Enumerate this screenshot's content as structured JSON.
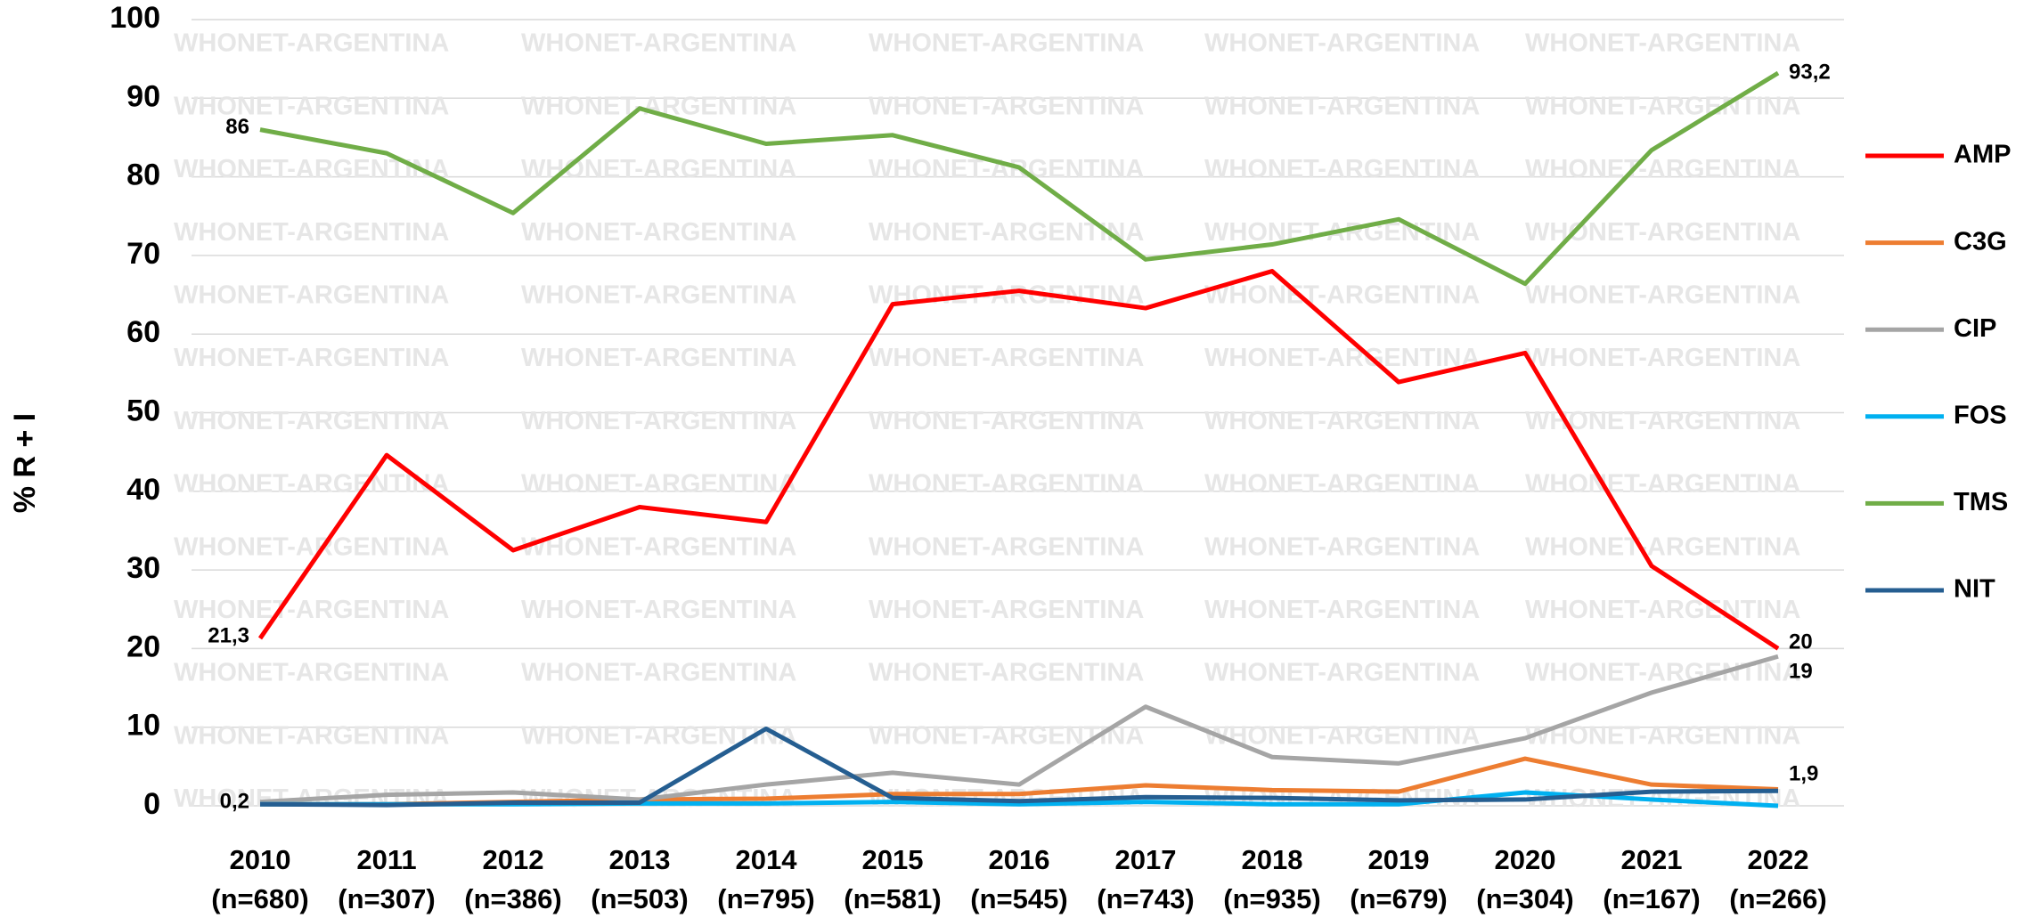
{
  "chart_data": {
    "type": "line",
    "y_label": "% R + I",
    "watermark": "WHONET-ARGENTINA",
    "categories": [
      "2010",
      "2011",
      "2012",
      "2013",
      "2014",
      "2015",
      "2016",
      "2017",
      "2018",
      "2019",
      "2020",
      "2021",
      "2022"
    ],
    "sample_sizes": [
      "(n=680)",
      "(n=307)",
      "(n=386)",
      "(n=503)",
      "(n=795)",
      "(n=581)",
      "(n=545)",
      "(n=743)",
      "(n=935)",
      "(n=679)",
      "(n=304)",
      "(n=167)",
      "(n=266)"
    ],
    "ylim": [
      0,
      100
    ],
    "yticks": [
      0,
      10,
      20,
      30,
      40,
      50,
      60,
      70,
      80,
      90,
      100
    ],
    "grid": true,
    "legend": "right",
    "series": [
      {
        "name": "AMP",
        "color": "#ff0000",
        "values": [
          21.3,
          44.6,
          32.5,
          38,
          36.1,
          63.8,
          65.5,
          63.3,
          68,
          53.9,
          57.6,
          30.5,
          20
        ],
        "value_labels": [
          "21,3",
          null,
          null,
          null,
          null,
          null,
          null,
          null,
          null,
          null,
          null,
          null,
          "20"
        ]
      },
      {
        "name": "C3G",
        "color": "#ed7d31",
        "values": [
          0.2,
          0.2,
          0.5,
          0.8,
          0.9,
          1.5,
          1.5,
          2.6,
          2,
          1.8,
          6,
          2.7,
          2.1
        ]
      },
      {
        "name": "CIP",
        "color": "#a5a5a5",
        "values": [
          0.5,
          1.4,
          1.7,
          0.8,
          2.7,
          4.2,
          2.7,
          12.6,
          6.2,
          5.4,
          8.6,
          14.4,
          19
        ],
        "value_labels": [
          null,
          null,
          null,
          null,
          null,
          null,
          null,
          null,
          null,
          null,
          null,
          null,
          "19"
        ]
      },
      {
        "name": "FOS",
        "color": "#00b0f0",
        "values": [
          0.2,
          0.2,
          0.2,
          0.3,
          0.3,
          0.5,
          0.2,
          0.5,
          0.2,
          0.2,
          1.7,
          0.8,
          0
        ]
      },
      {
        "name": "TMS",
        "color": "#70ad47",
        "values": [
          86,
          83,
          75.4,
          88.7,
          84.2,
          85.3,
          81.2,
          69.5,
          71.4,
          74.6,
          66.4,
          83.4,
          93.2
        ],
        "value_labels": [
          "86",
          null,
          null,
          null,
          null,
          null,
          null,
          null,
          null,
          null,
          null,
          null,
          "93,2"
        ]
      },
      {
        "name": "NIT",
        "color": "#255e91",
        "values": [
          0.2,
          0.1,
          0.4,
          0.4,
          9.8,
          1,
          0.6,
          1.1,
          1,
          0.7,
          0.8,
          1.8,
          1.9
        ],
        "value_labels": [
          "0,2",
          null,
          null,
          null,
          null,
          null,
          null,
          null,
          null,
          null,
          null,
          null,
          "1,9"
        ]
      }
    ]
  }
}
